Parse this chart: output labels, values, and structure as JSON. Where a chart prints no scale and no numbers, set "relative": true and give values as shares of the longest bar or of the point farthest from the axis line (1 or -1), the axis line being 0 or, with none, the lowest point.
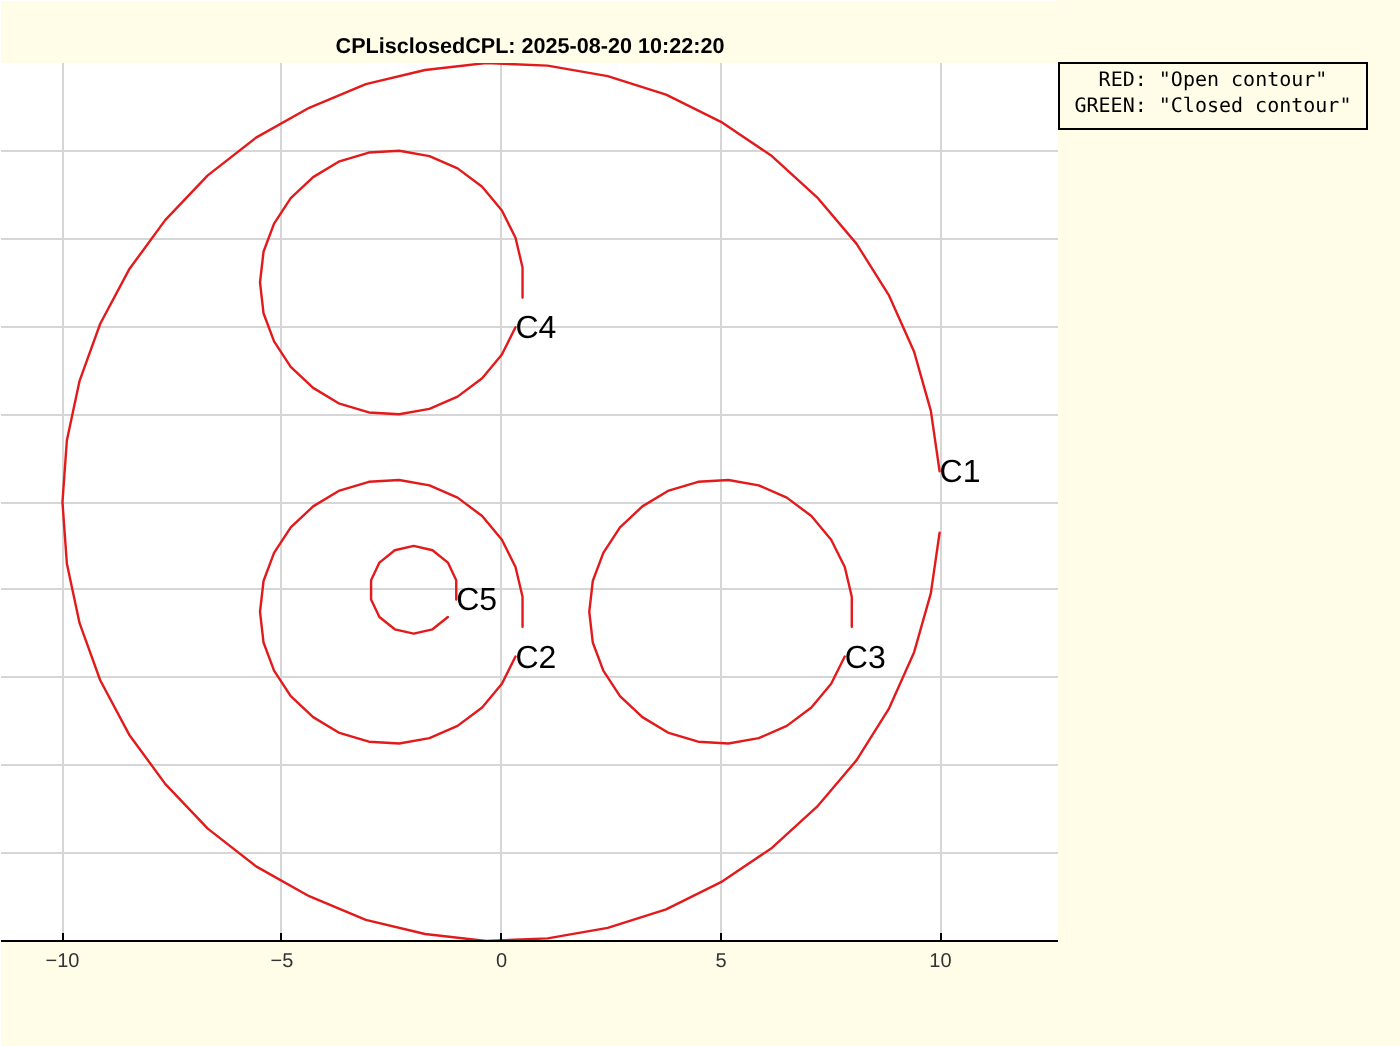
{
  "chart_data": {
    "type": "line",
    "title": "CPLisclosedCPL: 2025-08-20 10:22:20",
    "relative": true,
    "series": [
      {
        "name": "C1",
        "color": "#e31a1c",
        "x": [
          9.98,
          9.78,
          9.4,
          8.83,
          8.09,
          7.19,
          6.16,
          5.0,
          3.75,
          2.42,
          1.05,
          -0.35,
          -1.74,
          -3.09,
          -4.38,
          -5.59,
          -6.69,
          -7.66,
          -8.48,
          -9.14,
          -9.61,
          -9.9,
          -10.0,
          -9.9,
          -9.61,
          -9.14,
          -8.48,
          -7.66,
          -6.69,
          -5.59,
          -4.38,
          -3.09,
          -1.74,
          -0.35,
          1.05,
          2.42,
          3.75,
          5.0,
          6.16,
          7.19,
          8.09,
          8.83,
          9.4,
          9.78,
          9.98
        ],
        "values": [
          0.465,
          0.396,
          0.329,
          0.265,
          0.206,
          0.153,
          0.106,
          0.067,
          0.036,
          0.015,
          0.003,
          0.0,
          0.008,
          0.024,
          0.051,
          0.085,
          0.128,
          0.179,
          0.235,
          0.297,
          0.362,
          0.43,
          0.5,
          0.57,
          0.638,
          0.703,
          0.765,
          0.821,
          0.872,
          0.915,
          0.949,
          0.976,
          0.992,
          1.0,
          0.997,
          0.985,
          0.964,
          0.933,
          0.894,
          0.847,
          0.794,
          0.735,
          0.671,
          0.604,
          0.535
        ]
      },
      {
        "name": "C2",
        "color": "#e31a1c",
        "x": [
          0.48,
          0.48,
          0.32,
          0.01,
          -0.44,
          -1.0,
          -1.64,
          -2.33,
          -3.02,
          -3.69,
          -4.29,
          -4.8,
          -5.18,
          -5.42,
          -5.5,
          -5.42,
          -5.18,
          -4.8,
          -4.29,
          -3.69,
          -3.02,
          -2.33,
          -1.64,
          -1.0,
          -0.44,
          0.01,
          0.32
        ],
        "values": [
          0.358,
          0.392,
          0.426,
          0.457,
          0.484,
          0.505,
          0.519,
          0.525,
          0.523,
          0.513,
          0.495,
          0.471,
          0.442,
          0.41,
          0.375,
          0.34,
          0.308,
          0.279,
          0.255,
          0.237,
          0.227,
          0.225,
          0.231,
          0.245,
          0.266,
          0.293,
          0.324
        ]
      },
      {
        "name": "C3",
        "color": "#e31a1c",
        "x": [
          7.98,
          7.98,
          7.82,
          7.51,
          7.06,
          6.5,
          5.86,
          5.17,
          4.48,
          3.81,
          3.21,
          2.7,
          2.32,
          2.08,
          2.0,
          2.08,
          2.32,
          2.7,
          3.21,
          3.81,
          4.48,
          5.17,
          5.86,
          6.5,
          7.06,
          7.51,
          7.82
        ],
        "values": [
          0.358,
          0.392,
          0.426,
          0.457,
          0.484,
          0.505,
          0.519,
          0.525,
          0.523,
          0.513,
          0.495,
          0.471,
          0.442,
          0.41,
          0.375,
          0.34,
          0.308,
          0.279,
          0.255,
          0.237,
          0.227,
          0.225,
          0.231,
          0.245,
          0.266,
          0.293,
          0.324
        ]
      },
      {
        "name": "C4",
        "color": "#e31a1c",
        "x": [
          0.48,
          0.48,
          0.32,
          0.01,
          -0.44,
          -1.0,
          -1.64,
          -2.33,
          -3.02,
          -3.69,
          -4.29,
          -4.8,
          -5.18,
          -5.42,
          -5.5,
          -5.42,
          -5.18,
          -4.8,
          -4.29,
          -3.69,
          -3.02,
          -2.33,
          -1.64,
          -1.0,
          -0.44,
          0.01,
          0.32
        ],
        "values": [
          0.733,
          0.767,
          0.801,
          0.832,
          0.859,
          0.88,
          0.894,
          0.9,
          0.898,
          0.888,
          0.87,
          0.846,
          0.817,
          0.785,
          0.75,
          0.715,
          0.683,
          0.654,
          0.63,
          0.612,
          0.602,
          0.6,
          0.606,
          0.62,
          0.641,
          0.668,
          0.699
        ]
      },
      {
        "name": "C5",
        "color": "#e31a1c",
        "x": [
          -1.22,
          -1.57,
          -2.0,
          -2.43,
          -2.78,
          -2.97,
          -2.97,
          -2.78,
          -2.43,
          -2.0,
          -1.57,
          -1.22,
          -1.03,
          -1.03
        ],
        "values": [
          0.369,
          0.355,
          0.35,
          0.355,
          0.369,
          0.389,
          0.411,
          0.431,
          0.445,
          0.45,
          0.445,
          0.431,
          0.411,
          0.389
        ]
      }
    ],
    "xlim": [
      -11.4,
      12.7
    ],
    "xticks": [
      -10,
      -5,
      0,
      5,
      10
    ],
    "tick_labels": "x",
    "grid": true,
    "line_style": "solid",
    "annotations": [
      "RED: \"Open contour\"",
      "GREEN: \"Closed contour\""
    ]
  }
}
